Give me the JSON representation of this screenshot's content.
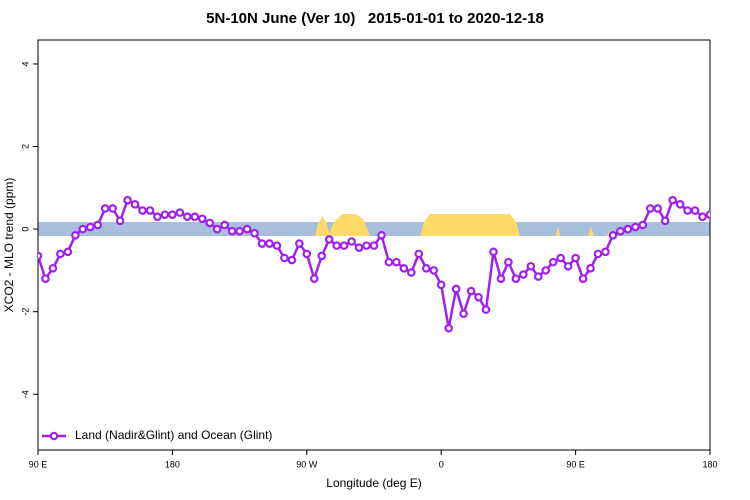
{
  "chart_data": {
    "type": "line",
    "title": "5N-10N June (Ver 10)   2015-01-01 to 2020-12-18",
    "xlabel": "Longitude (deg E)",
    "ylabel": "XCO2 - MLO trend (ppm)",
    "x": [
      90,
      95,
      100,
      105,
      110,
      115,
      120,
      125,
      130,
      135,
      140,
      145,
      150,
      155,
      160,
      165,
      170,
      175,
      180,
      185,
      190,
      195,
      200,
      205,
      210,
      215,
      220,
      225,
      230,
      235,
      240,
      245,
      250,
      255,
      260,
      265,
      270,
      275,
      280,
      285,
      290,
      295,
      300,
      305,
      310,
      315,
      320,
      325,
      330,
      335,
      340,
      345,
      350,
      355,
      360,
      365,
      370,
      375,
      380,
      385,
      390,
      395,
      400,
      405,
      410,
      415,
      420,
      425,
      430,
      435,
      440,
      445,
      450,
      455,
      460,
      465,
      470,
      475,
      480,
      485,
      490,
      495,
      500,
      505,
      510,
      515,
      520,
      525,
      530,
      535,
      540
    ],
    "series": [
      {
        "name": "Land (Nadir&Glint) and Ocean (Glint)",
        "color": "#a020f0",
        "values": [
          -0.65,
          -1.2,
          -0.95,
          -0.6,
          -0.55,
          -0.15,
          0,
          0.05,
          0.1,
          0.5,
          0.5,
          0.2,
          0.7,
          0.6,
          0.45,
          0.45,
          0.3,
          0.35,
          0.35,
          0.4,
          0.3,
          0.3,
          0.25,
          0.15,
          0,
          0.1,
          -0.05,
          -0.05,
          0,
          -0.1,
          -0.35,
          -0.35,
          -0.4,
          -0.7,
          -0.75,
          -0.35,
          -0.6,
          -1.2,
          -0.65,
          -0.25,
          -0.4,
          -0.4,
          -0.3,
          -0.45,
          -0.4,
          -0.4,
          -0.15,
          -0.8,
          -0.8,
          -0.95,
          -1.05,
          -0.6,
          -0.95,
          -1.0,
          -1.35,
          -2.4,
          -1.45,
          -2.05,
          -1.5,
          -1.65,
          -1.95,
          -0.55,
          -1.2,
          -0.8,
          -1.2,
          -1.1,
          -0.9,
          -1.15,
          -1.0,
          -0.8,
          -0.7,
          -0.9,
          -0.7,
          -1.2,
          -0.95,
          -0.6,
          -0.55,
          -0.15,
          -0.05,
          0,
          0.05,
          0.1,
          0.5,
          0.5,
          0.2,
          0.7,
          0.6,
          0.45,
          0.45,
          0.3,
          0.35
        ]
      }
    ],
    "xlim": [
      90,
      540
    ],
    "xticks": [
      {
        "value": 90,
        "label": "90 E"
      },
      {
        "value": 180,
        "label": "180"
      },
      {
        "value": 270,
        "label": "90 W"
      },
      {
        "value": 360,
        "label": "0"
      },
      {
        "value": 450,
        "label": "90 E"
      },
      {
        "value": 540,
        "label": "180"
      }
    ],
    "ylim": [
      -5.35,
      4.58
    ],
    "yticks": [
      -4,
      -2,
      0,
      2,
      4
    ],
    "legend": "bottom-left"
  }
}
